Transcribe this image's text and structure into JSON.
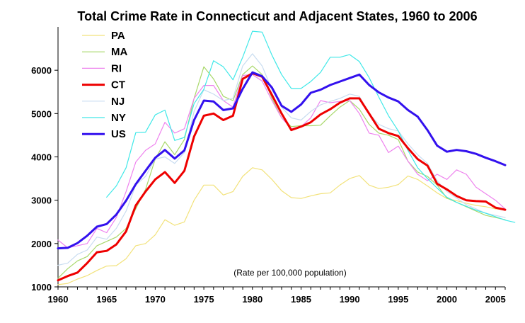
{
  "chart_data": {
    "type": "line",
    "title": "Total Crime Rate in Connecticut and Adjacent States, 1960 to 2006",
    "note": "(Rate per 100,000 population)",
    "xlabel": "",
    "ylabel": "",
    "xlim": [
      1960,
      2006
    ],
    "ylim": [
      1000,
      7000
    ],
    "x_ticks": [
      1960,
      1965,
      1970,
      1975,
      1980,
      1985,
      1990,
      1995,
      2000,
      2005
    ],
    "y_ticks": [
      1000,
      2000,
      3000,
      4000,
      5000,
      6000
    ],
    "grid": false,
    "legend_position": "top-left",
    "series": [
      {
        "name": "PA",
        "color": "#f2e27a",
        "width": 1.2,
        "x_start": 1960,
        "values": [
          1050,
          1080,
          1180,
          1260,
          1380,
          1480,
          1490,
          1650,
          1950,
          2000,
          2200,
          2550,
          2420,
          2500,
          3000,
          3350,
          3350,
          3120,
          3200,
          3550,
          3750,
          3700,
          3480,
          3220,
          3060,
          3040,
          3100,
          3150,
          3170,
          3350,
          3500,
          3570,
          3350,
          3270,
          3300,
          3360,
          3560,
          3480,
          3330,
          3170,
          3040,
          2990,
          2930,
          2880,
          2850,
          2800,
          2780
        ]
      },
      {
        "name": "MA",
        "color": "#a8d86a",
        "width": 1.2,
        "x_start": 1960,
        "values": [
          1200,
          1420,
          1600,
          1700,
          1950,
          2050,
          2150,
          2350,
          2800,
          3250,
          3950,
          4350,
          4050,
          4400,
          5350,
          6080,
          5800,
          5400,
          5300,
          5900,
          6100,
          5900,
          5350,
          4900,
          4700,
          4720,
          4720,
          4730,
          4950,
          5150,
          5300,
          5100,
          4750,
          4550,
          4500,
          4400,
          3900,
          3650,
          3550,
          3350,
          3050,
          2950,
          2850,
          2750,
          2650,
          2600,
          2550
        ]
      },
      {
        "name": "RI",
        "color": "#ee82ee",
        "width": 1.2,
        "x_start": 1960,
        "values": [
          2080,
          1900,
          1950,
          2000,
          2350,
          2250,
          2600,
          3200,
          3880,
          4150,
          4300,
          4800,
          4550,
          4650,
          5350,
          5650,
          5650,
          5300,
          5150,
          5880,
          5900,
          5750,
          5300,
          4900,
          4650,
          4700,
          4900,
          5300,
          5250,
          5280,
          5300,
          5000,
          4550,
          4500,
          4100,
          4250,
          3900,
          3600,
          3450,
          3600,
          3480,
          3700,
          3600,
          3300,
          3150,
          3000,
          2800
        ]
      },
      {
        "name": "CT",
        "color": "#ee0000",
        "width": 3,
        "x_start": 1960,
        "values": [
          1150,
          1250,
          1330,
          1550,
          1800,
          1830,
          1980,
          2280,
          2880,
          3200,
          3480,
          3650,
          3400,
          3680,
          4470,
          4950,
          5000,
          4850,
          4950,
          5800,
          5930,
          5850,
          5430,
          5000,
          4620,
          4700,
          4800,
          4980,
          5100,
          5250,
          5350,
          5350,
          5000,
          4650,
          4550,
          4480,
          4200,
          3950,
          3800,
          3380,
          3250,
          3100,
          3000,
          2980,
          2970,
          2830,
          2780
        ]
      },
      {
        "name": "NJ",
        "color": "#c8dcf0",
        "width": 1.2,
        "x_start": 1960,
        "values": [
          1500,
          1550,
          1750,
          1850,
          2150,
          2100,
          2350,
          2750,
          3350,
          3550,
          3950,
          4000,
          3850,
          4100,
          5050,
          5550,
          5450,
          5300,
          5350,
          6100,
          6380,
          6100,
          5550,
          5150,
          4900,
          4850,
          5050,
          5200,
          5280,
          5350,
          5450,
          5400,
          5000,
          4750,
          4650,
          4600,
          4300,
          4050,
          3850,
          3450,
          3200,
          3050,
          2900,
          2800,
          2700,
          2650,
          2600
        ]
      },
      {
        "name": "NY",
        "color": "#40e8e8",
        "width": 1.2,
        "x_start": 1965,
        "values": [
          3070,
          3330,
          3750,
          4560,
          4570,
          4970,
          5080,
          4380,
          4450,
          5230,
          5560,
          6220,
          6080,
          5780,
          6300,
          6900,
          6880,
          6350,
          5900,
          5580,
          5580,
          5740,
          5950,
          6300,
          6300,
          6360,
          6200,
          5830,
          5380,
          4950,
          4600,
          4150,
          3750,
          3500,
          3280,
          3070,
          2950,
          2860,
          2770,
          2700,
          2620,
          2540,
          2490
        ]
      },
      {
        "name": "US",
        "color": "#3311ee",
        "width": 3,
        "x_start": 1960,
        "values": [
          1890,
          1900,
          2010,
          2180,
          2390,
          2450,
          2670,
          2990,
          3370,
          3680,
          3980,
          4160,
          3960,
          4150,
          4850,
          5300,
          5280,
          5080,
          5120,
          5570,
          5950,
          5860,
          5600,
          5180,
          5040,
          5210,
          5480,
          5550,
          5660,
          5740,
          5820,
          5900,
          5660,
          5490,
          5370,
          5280,
          5080,
          4930,
          4620,
          4260,
          4120,
          4160,
          4130,
          4070,
          3980,
          3900,
          3810
        ]
      }
    ]
  }
}
